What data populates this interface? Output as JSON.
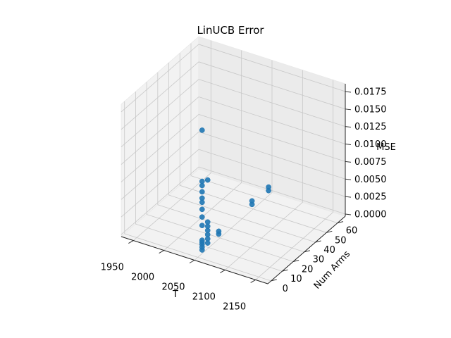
{
  "chart_data": {
    "type": "scatter",
    "projection": "3d",
    "title": "LinUCB Error",
    "xlabel": "T",
    "ylabel": "Num Arms",
    "zlabel": "MSE",
    "xticks": [
      "1950",
      "2000",
      "2050",
      "2100",
      "2150"
    ],
    "yticks": [
      "0",
      "10",
      "20",
      "30",
      "40",
      "50",
      "60"
    ],
    "zticks": [
      "0.0000",
      "0.0025",
      "0.0050",
      "0.0075",
      "0.0100",
      "0.0125",
      "0.0150",
      "0.0175"
    ],
    "xlim": [
      1930,
      2170
    ],
    "ylim": [
      -3,
      67
    ],
    "zlim": [
      -0.0003,
      0.0186
    ],
    "grid": true,
    "marker_color": "#1f77b4",
    "points": [
      {
        "x": 2048,
        "y": 5,
        "z": 0.0
      },
      {
        "x": 2048,
        "y": 5,
        "z": 0.0004
      },
      {
        "x": 2048,
        "y": 5,
        "z": 0.0008
      },
      {
        "x": 2048,
        "y": 5,
        "z": 0.0011
      },
      {
        "x": 2048,
        "y": 5,
        "z": 0.0014
      },
      {
        "x": 2048,
        "y": 5,
        "z": 0.0035
      },
      {
        "x": 2048,
        "y": 5,
        "z": 0.0047
      },
      {
        "x": 2048,
        "y": 5,
        "z": 0.0058
      },
      {
        "x": 2048,
        "y": 5,
        "z": 0.0068
      },
      {
        "x": 2048,
        "y": 5,
        "z": 0.0074
      },
      {
        "x": 2048,
        "y": 5,
        "z": 0.0083
      },
      {
        "x": 2048,
        "y": 5,
        "z": 0.0092
      },
      {
        "x": 2048,
        "y": 5,
        "z": 0.0098
      },
      {
        "x": 2048,
        "y": 5,
        "z": 0.0171
      },
      {
        "x": 2048,
        "y": 10,
        "z": 0.0003
      },
      {
        "x": 2048,
        "y": 10,
        "z": 0.0009
      },
      {
        "x": 2048,
        "y": 10,
        "z": 0.0015
      },
      {
        "x": 2048,
        "y": 10,
        "z": 0.0021
      },
      {
        "x": 2048,
        "y": 10,
        "z": 0.0027
      },
      {
        "x": 2048,
        "y": 10,
        "z": 0.0033
      },
      {
        "x": 2048,
        "y": 10,
        "z": 0.0093
      },
      {
        "x": 2048,
        "y": 20,
        "z": 0.0002
      },
      {
        "x": 2048,
        "y": 20,
        "z": 0.0006
      },
      {
        "x": 2048,
        "y": 50,
        "z": 0.0003
      },
      {
        "x": 2048,
        "y": 50,
        "z": 0.0008
      },
      {
        "x": 2048,
        "y": 65,
        "z": 0.0002
      },
      {
        "x": 2048,
        "y": 65,
        "z": 0.0007
      }
    ]
  }
}
